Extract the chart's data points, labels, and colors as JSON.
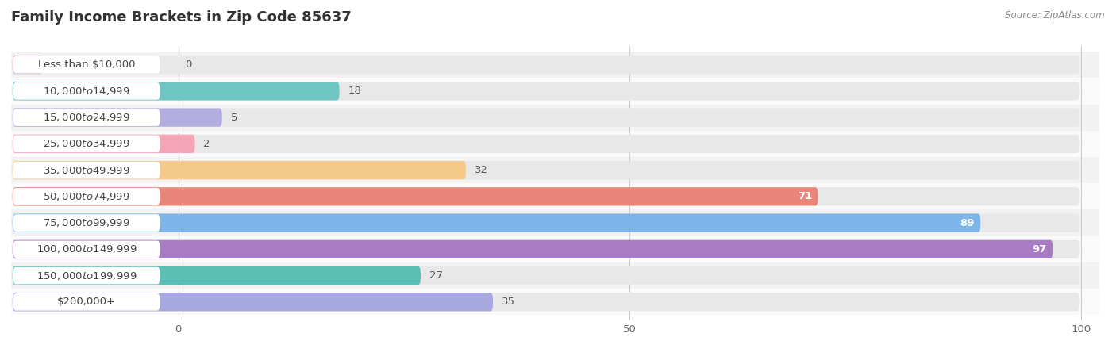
{
  "title": "Family Income Brackets in Zip Code 85637",
  "source": "Source: ZipAtlas.com",
  "categories": [
    "Less than $10,000",
    "$10,000 to $14,999",
    "$15,000 to $24,999",
    "$25,000 to $34,999",
    "$35,000 to $49,999",
    "$50,000 to $74,999",
    "$75,000 to $99,999",
    "$100,000 to $149,999",
    "$150,000 to $199,999",
    "$200,000+"
  ],
  "values": [
    0,
    18,
    5,
    2,
    32,
    71,
    89,
    97,
    27,
    35
  ],
  "bar_colors": [
    "#d4a8c7",
    "#6ec5c1",
    "#b3aee0",
    "#f4a6b8",
    "#f5c98a",
    "#e8867a",
    "#7eb5e8",
    "#a87bc5",
    "#5bbfb5",
    "#a8a8e0"
  ],
  "xlim_data": [
    0,
    100
  ],
  "title_fontsize": 13,
  "label_fontsize": 9.5,
  "value_fontsize": 9.5,
  "bar_height": 0.7,
  "figsize": [
    14.06,
    4.49
  ],
  "dpi": 100,
  "row_colors": [
    "#f2f2f2",
    "#fafafa"
  ],
  "bar_bg_color": "#e8e8e8",
  "label_box_color": "#ffffff",
  "label_text_color": "#444444",
  "source_color": "#888888",
  "title_color": "#333333",
  "value_color_inside": "#ffffff",
  "value_color_outside": "#555555",
  "inside_threshold": 50
}
